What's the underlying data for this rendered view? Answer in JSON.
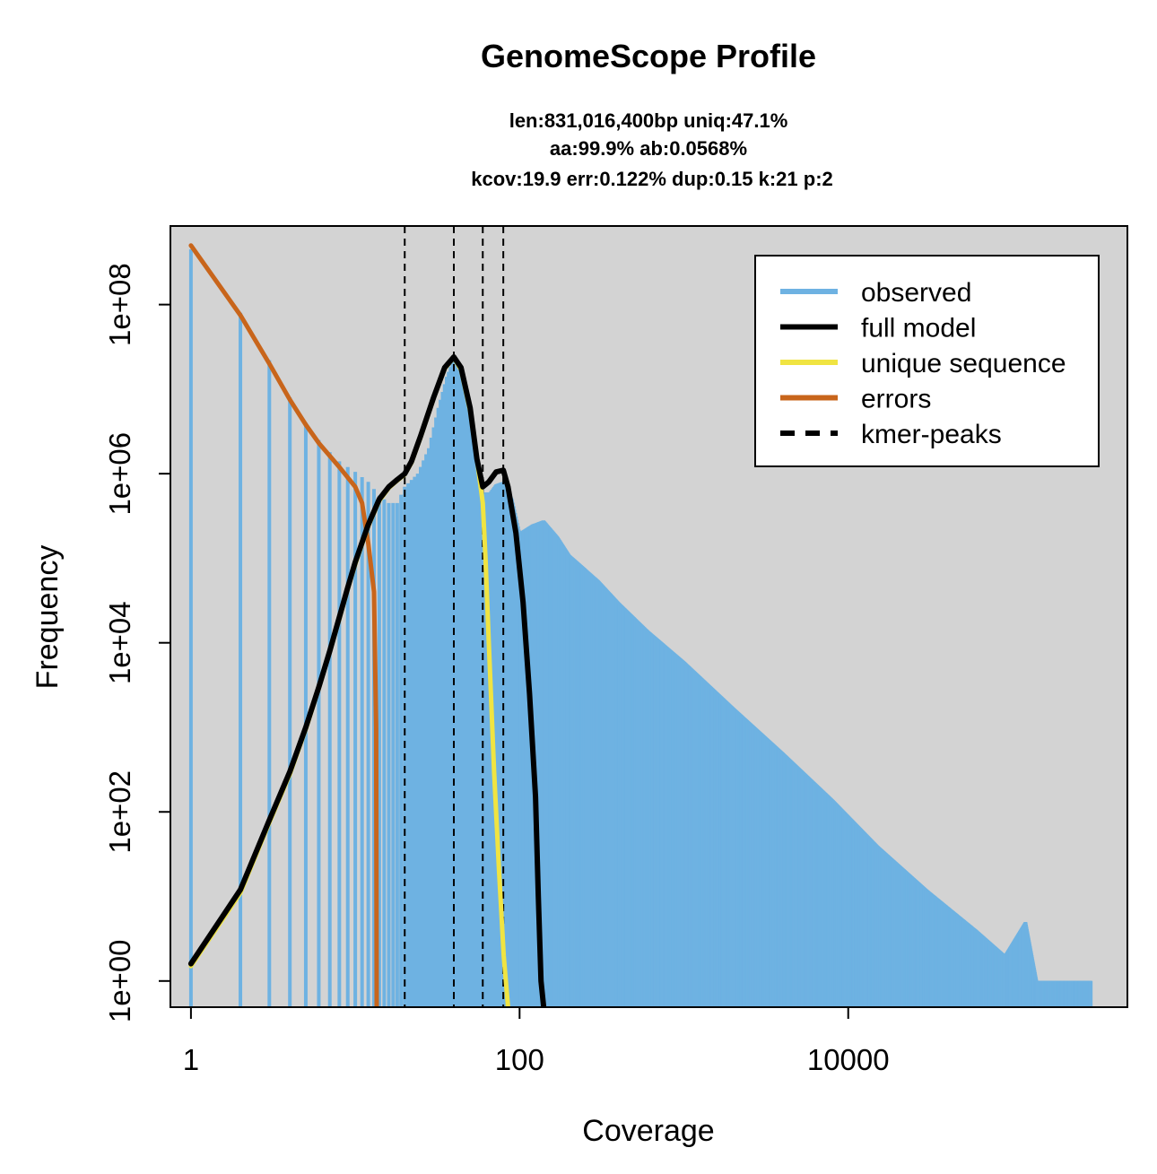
{
  "chart_data": {
    "type": "line",
    "title": "GenomeScope Profile",
    "subtitle_lines": [
      "len:831,016,400bp uniq:47.1%",
      "aa:99.9% ab:0.0568%",
      "kcov:19.9 err:0.122%  dup:0.15  k:21 p:2"
    ],
    "xlabel": "Coverage",
    "ylabel": "Frequency",
    "x_scale": "log",
    "y_scale": "log",
    "xlim": [
      0.75,
      500000
    ],
    "ylim": [
      0.49,
      850000000
    ],
    "x_ticks": [
      {
        "value": 1,
        "label": "1"
      },
      {
        "value": 100,
        "label": "100"
      },
      {
        "value": 10000,
        "label": "10000"
      }
    ],
    "y_ticks": [
      {
        "value": 1,
        "label": "1e+00"
      },
      {
        "value": 100,
        "label": "1e+02"
      },
      {
        "value": 10000,
        "label": "1e+04"
      },
      {
        "value": 1000000,
        "label": "1e+06"
      },
      {
        "value": 100000000,
        "label": "1e+08"
      }
    ],
    "background_color": "#d3d3d3",
    "legend": {
      "placement": "top-right",
      "entries": [
        {
          "label": "observed",
          "color": "#6eb2e2",
          "style": "solid"
        },
        {
          "label": "full model",
          "color": "#000000",
          "style": "solid"
        },
        {
          "label": "unique sequence",
          "color": "#f0e442",
          "style": "solid"
        },
        {
          "label": "errors",
          "color": "#c8651b",
          "style": "solid"
        },
        {
          "label": "kmer-peaks",
          "color": "#000000",
          "style": "dashed"
        }
      ]
    },
    "kmer_peaks": [
      20,
      39.8,
      59.7,
      79.6
    ],
    "series": [
      {
        "name": "observed",
        "render": "histogram",
        "color": "#6eb2e2",
        "points": [
          [
            1,
            450000000
          ],
          [
            2,
            80000000
          ],
          [
            3,
            22000000
          ],
          [
            4,
            8000000
          ],
          [
            5,
            4000000
          ],
          [
            6,
            2500000
          ],
          [
            7,
            1800000
          ],
          [
            8,
            1400000
          ],
          [
            9,
            1200000
          ],
          [
            10,
            1050000
          ],
          [
            12,
            800000
          ],
          [
            14,
            550000
          ],
          [
            16,
            450000
          ],
          [
            18,
            450000
          ],
          [
            20,
            700000
          ],
          [
            24,
            1000000
          ],
          [
            28,
            2000000
          ],
          [
            32,
            6000000
          ],
          [
            36,
            14000000
          ],
          [
            39.8,
            23000000
          ],
          [
            44,
            14000000
          ],
          [
            50,
            4000000
          ],
          [
            56,
            1000000
          ],
          [
            59.7,
            600000
          ],
          [
            66,
            600000
          ],
          [
            72,
            750000
          ],
          [
            79.6,
            800000
          ],
          [
            90,
            500000
          ],
          [
            100,
            200000
          ],
          [
            120,
            250000
          ],
          [
            140,
            280000
          ],
          [
            170,
            180000
          ],
          [
            200,
            110000
          ],
          [
            300,
            55000
          ],
          [
            400,
            30000
          ],
          [
            600,
            14000
          ],
          [
            1000,
            6000
          ],
          [
            2000,
            1700
          ],
          [
            4000,
            500
          ],
          [
            8000,
            140
          ],
          [
            15000,
            40
          ],
          [
            30000,
            12
          ],
          [
            60000,
            4
          ],
          [
            90000,
            2
          ],
          [
            120000,
            5
          ],
          [
            140000,
            1
          ],
          [
            200000,
            1
          ],
          [
            300000,
            1
          ]
        ]
      },
      {
        "name": "full model",
        "color": "#000000",
        "points": [
          [
            1,
            1.6
          ],
          [
            2,
            12
          ],
          [
            3,
            80
          ],
          [
            4,
            300
          ],
          [
            5,
            1000
          ],
          [
            6,
            3000
          ],
          [
            7,
            8000
          ],
          [
            8,
            20000
          ],
          [
            9,
            45000
          ],
          [
            10,
            90000
          ],
          [
            12,
            250000
          ],
          [
            14,
            500000
          ],
          [
            16,
            700000
          ],
          [
            18,
            850000
          ],
          [
            20,
            1000000
          ],
          [
            22,
            1400000
          ],
          [
            25,
            2800000
          ],
          [
            30,
            8000000
          ],
          [
            35,
            18000000
          ],
          [
            39.8,
            24000000
          ],
          [
            44,
            18000000
          ],
          [
            50,
            6000000
          ],
          [
            55,
            1500000
          ],
          [
            59.7,
            700000
          ],
          [
            65,
            800000
          ],
          [
            72,
            1050000
          ],
          [
            79.6,
            1100000
          ],
          [
            85,
            700000
          ],
          [
            95,
            200000
          ],
          [
            105,
            30000
          ],
          [
            115,
            2500
          ],
          [
            125,
            150
          ],
          [
            130,
            10
          ],
          [
            135,
            1
          ],
          [
            140,
            0.5
          ]
        ]
      },
      {
        "name": "unique sequence",
        "color": "#f0e442",
        "points": [
          [
            1,
            1.5
          ],
          [
            2,
            11
          ],
          [
            3,
            75
          ],
          [
            4,
            280
          ],
          [
            5,
            950
          ],
          [
            6,
            2900
          ],
          [
            7,
            7800
          ],
          [
            8,
            19000
          ],
          [
            9,
            43000
          ],
          [
            10,
            85000
          ],
          [
            12,
            240000
          ],
          [
            14,
            480000
          ],
          [
            16,
            680000
          ],
          [
            18,
            830000
          ],
          [
            20,
            980000
          ],
          [
            22,
            1350000
          ],
          [
            25,
            2700000
          ],
          [
            30,
            7800000
          ],
          [
            35,
            17500000
          ],
          [
            39.8,
            23500000
          ],
          [
            44,
            17000000
          ],
          [
            50,
            5500000
          ],
          [
            55,
            1500000
          ],
          [
            59.7,
            450000
          ],
          [
            62,
            100000
          ],
          [
            65,
            10000
          ],
          [
            70,
            300
          ],
          [
            75,
            20
          ],
          [
            80,
            2
          ],
          [
            85,
            0.5
          ]
        ]
      },
      {
        "name": "errors",
        "color": "#c8651b",
        "points": [
          [
            1,
            500000000
          ],
          [
            2,
            75000000
          ],
          [
            3,
            20000000
          ],
          [
            4,
            7500000
          ],
          [
            5,
            3800000
          ],
          [
            6,
            2300000
          ],
          [
            8,
            1200000
          ],
          [
            10,
            700000
          ],
          [
            11,
            450000
          ],
          [
            12,
            150000
          ],
          [
            13,
            40000
          ],
          [
            13.4,
            1000
          ],
          [
            13.5,
            0.5
          ]
        ]
      }
    ]
  }
}
